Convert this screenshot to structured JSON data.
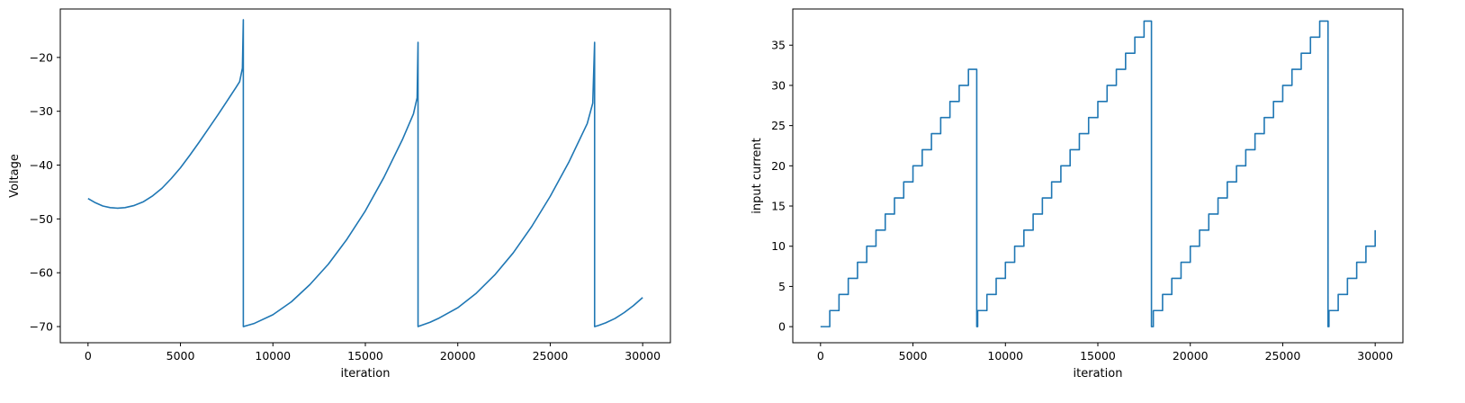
{
  "chart_data": [
    {
      "type": "line",
      "xlabel": "iteration",
      "ylabel": "Voltage",
      "xlim": [
        -1500,
        31500
      ],
      "ylim": [
        -73,
        -11
      ],
      "xticks": [
        0,
        5000,
        10000,
        15000,
        20000,
        25000,
        30000
      ],
      "yticks": [
        -70,
        -60,
        -50,
        -40,
        -30,
        -20
      ],
      "line_color": "#1f77b4",
      "grid": false,
      "series": [
        {
          "x": [
            0,
            400,
            800,
            1200,
            1600,
            2000,
            2500,
            3000,
            3500,
            4000,
            4500,
            5000,
            5500,
            6000,
            6500,
            7000,
            7500,
            8000,
            8200,
            8350,
            8400,
            8400,
            8600,
            9000,
            10000,
            11000,
            12000,
            13000,
            14000,
            15000,
            16000,
            17000,
            17600,
            17800,
            17850,
            17850,
            18000,
            18500,
            19000,
            20000,
            21000,
            22000,
            23000,
            24000,
            25000,
            26000,
            27000,
            27300,
            27400,
            27400,
            27600,
            28000,
            28500,
            29000,
            29500,
            30000
          ],
          "y": [
            -46.2,
            -47.0,
            -47.6,
            -47.9,
            -48.0,
            -47.9,
            -47.5,
            -46.8,
            -45.7,
            -44.3,
            -42.5,
            -40.5,
            -38.2,
            -35.8,
            -33.3,
            -30.8,
            -28.2,
            -25.6,
            -24.5,
            -22.0,
            -13.0,
            -70.0,
            -69.8,
            -69.4,
            -67.8,
            -65.4,
            -62.2,
            -58.4,
            -53.8,
            -48.5,
            -42.3,
            -35.3,
            -30.5,
            -27.5,
            -17.2,
            -70.0,
            -69.8,
            -69.2,
            -68.4,
            -66.5,
            -63.8,
            -60.4,
            -56.3,
            -51.4,
            -45.8,
            -39.5,
            -32.3,
            -28.5,
            -17.2,
            -70.0,
            -69.8,
            -69.3,
            -68.5,
            -67.4,
            -66.1,
            -64.6
          ]
        }
      ]
    },
    {
      "type": "line",
      "xlabel": "iteration",
      "ylabel": "input current",
      "xlim": [
        -1500,
        31500
      ],
      "ylim": [
        -2,
        39.5
      ],
      "xticks": [
        0,
        5000,
        10000,
        15000,
        20000,
        25000,
        30000
      ],
      "yticks": [
        0,
        5,
        10,
        15,
        20,
        25,
        30,
        35
      ],
      "line_color": "#1f77b4",
      "grid": false,
      "series": [
        {
          "step": "post",
          "x": [
            0,
            500,
            1000,
            1500,
            2000,
            2500,
            3000,
            3500,
            4000,
            4500,
            5000,
            5500,
            6000,
            6500,
            7000,
            7500,
            8000,
            8450,
            8500,
            9000,
            9500,
            10000,
            10500,
            11000,
            11500,
            12000,
            12500,
            13000,
            13500,
            14000,
            14500,
            15000,
            15500,
            16000,
            16500,
            17000,
            17500,
            17900,
            18000,
            18500,
            19000,
            19500,
            20000,
            20500,
            21000,
            21500,
            22000,
            22500,
            23000,
            23500,
            24000,
            24500,
            25000,
            25500,
            26000,
            26500,
            27000,
            27450,
            27500,
            28000,
            28500,
            29000,
            29500,
            30000
          ],
          "y": [
            0,
            2,
            4,
            6,
            8,
            10,
            12,
            14,
            16,
            18,
            20,
            22,
            24,
            26,
            28,
            30,
            32,
            0,
            2,
            4,
            6,
            8,
            10,
            12,
            14,
            16,
            18,
            20,
            22,
            24,
            26,
            28,
            30,
            32,
            34,
            36,
            38,
            0,
            2,
            4,
            6,
            8,
            10,
            12,
            14,
            16,
            18,
            20,
            22,
            24,
            26,
            28,
            30,
            32,
            34,
            36,
            38,
            0,
            2,
            4,
            6,
            8,
            10,
            12
          ]
        }
      ]
    }
  ]
}
